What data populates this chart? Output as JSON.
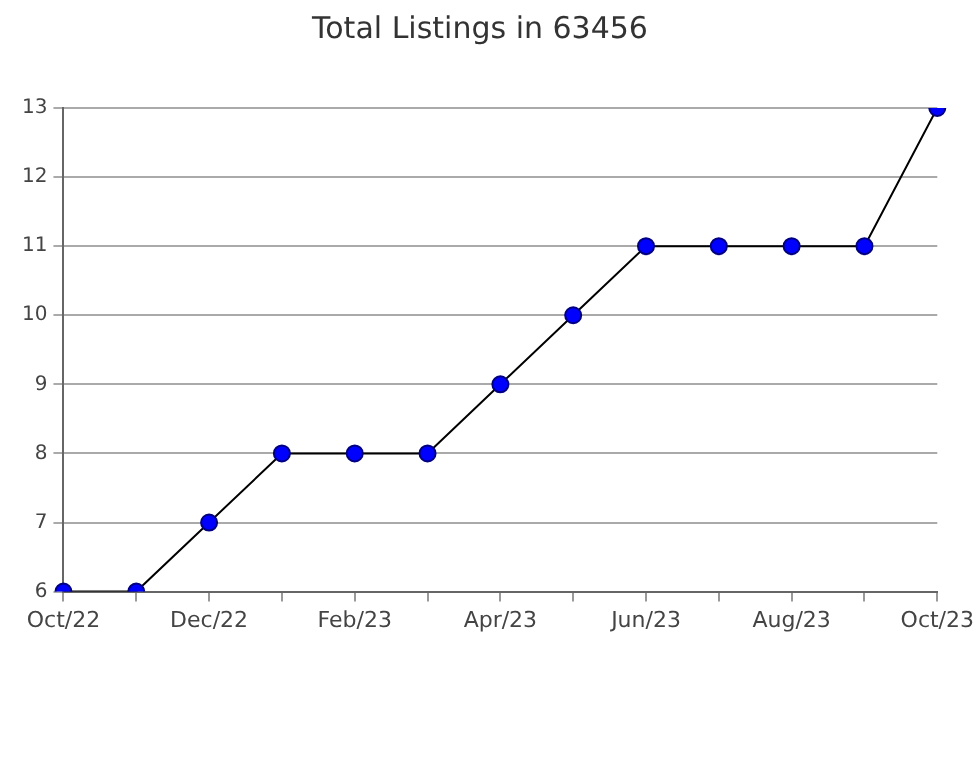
{
  "chart_data": {
    "type": "line",
    "title": "Total Listings in 63456",
    "categories": [
      "Oct/22",
      null,
      "Dec/22",
      null,
      "Feb/23",
      null,
      "Apr/23",
      null,
      "Jun/23",
      null,
      "Aug/23",
      null,
      "Oct/23"
    ],
    "series": [
      {
        "color": "#000000",
        "values": [
          6,
          6,
          7,
          8,
          8,
          8,
          9,
          10,
          11,
          11,
          11,
          11,
          13
        ]
      }
    ],
    "ylim": [
      6,
      13
    ],
    "yticks": [
      6,
      7,
      8,
      9,
      10,
      11,
      12,
      13
    ],
    "grid": "y",
    "legend": false,
    "marker": "circle",
    "line_style": "solid"
  }
}
